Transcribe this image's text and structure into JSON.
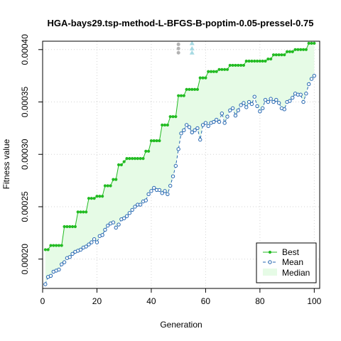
{
  "chart_data": {
    "type": "line",
    "title": "HGA-bays29.tsp-method-L-BFGS-B-poptim-0.05-pressel-0.75",
    "xlabel": "Generation",
    "ylabel": "Fitness value",
    "xlim": [
      0,
      102
    ],
    "ylim": [
      0.000172,
      0.000408
    ],
    "x_ticks": [
      0,
      20,
      40,
      60,
      80,
      100
    ],
    "x_tick_labels": [
      "0",
      "20",
      "40",
      "60",
      "80",
      "100"
    ],
    "y_ticks": [
      0.0002,
      0.00025,
      0.0003,
      0.00035,
      0.0004
    ],
    "y_tick_labels": [
      "0.00020",
      "0.00025",
      "0.00030",
      "0.00035",
      "0.00040"
    ],
    "grid": true,
    "legend_position": "bottom-right",
    "x": [
      1,
      2,
      3,
      4,
      5,
      6,
      7,
      8,
      9,
      10,
      11,
      12,
      13,
      14,
      15,
      16,
      17,
      18,
      19,
      20,
      21,
      22,
      23,
      24,
      25,
      26,
      27,
      28,
      29,
      30,
      31,
      32,
      33,
      34,
      35,
      36,
      37,
      38,
      39,
      40,
      41,
      42,
      43,
      44,
      45,
      46,
      47,
      48,
      49,
      50,
      51,
      52,
      53,
      54,
      55,
      56,
      57,
      58,
      59,
      60,
      61,
      62,
      63,
      64,
      65,
      66,
      67,
      68,
      69,
      70,
      71,
      72,
      73,
      74,
      75,
      76,
      77,
      78,
      79,
      80,
      81,
      82,
      83,
      84,
      85,
      86,
      87,
      88,
      89,
      90,
      91,
      92,
      93,
      94,
      95,
      96,
      97,
      98,
      99,
      100
    ],
    "series": [
      {
        "name": "Best",
        "color": "#22bb22",
        "style": "solid-dots",
        "values": [
          0.000209,
          0.000209,
          0.000213,
          0.000213,
          0.000213,
          0.000213,
          0.000213,
          0.000231,
          0.000231,
          0.000231,
          0.000231,
          0.000231,
          0.000245,
          0.000245,
          0.000245,
          0.000245,
          0.000258,
          0.000258,
          0.000258,
          0.00026,
          0.00026,
          0.00026,
          0.00027,
          0.00027,
          0.00027,
          0.000276,
          0.000276,
          0.00029,
          0.00029,
          0.000293,
          0.000296,
          0.000296,
          0.000296,
          0.000296,
          0.000296,
          0.000296,
          0.000296,
          0.000303,
          0.000303,
          0.000313,
          0.000313,
          0.000313,
          0.000313,
          0.000328,
          0.000328,
          0.000328,
          0.000336,
          0.000336,
          0.000336,
          0.000356,
          0.000356,
          0.000356,
          0.000362,
          0.000362,
          0.000362,
          0.000362,
          0.000362,
          0.000373,
          0.000373,
          0.000373,
          0.000379,
          0.000379,
          0.000379,
          0.000379,
          0.000381,
          0.000381,
          0.000381,
          0.000381,
          0.000385,
          0.000385,
          0.000385,
          0.000385,
          0.000385,
          0.000385,
          0.000389,
          0.000389,
          0.000389,
          0.000389,
          0.000389,
          0.000389,
          0.000389,
          0.000389,
          0.000391,
          0.000391,
          0.000395,
          0.000395,
          0.000395,
          0.000395,
          0.000395,
          0.000398,
          0.000398,
          0.000398,
          0.0004,
          0.0004,
          0.0004,
          0.0004,
          0.0004,
          0.000406,
          0.000406,
          0.000406
        ]
      },
      {
        "name": "Mean",
        "color": "#2466b0",
        "style": "dashed-open-circles",
        "values": [
          0.000176,
          0.000183,
          0.000184,
          0.000188,
          0.000189,
          0.00019,
          0.000195,
          0.000197,
          0.000201,
          0.000202,
          0.000205,
          0.000207,
          0.000208,
          0.000209,
          0.000211,
          0.000212,
          0.000214,
          0.000216,
          0.000219,
          0.000216,
          0.000222,
          0.000223,
          0.000228,
          0.000232,
          0.000234,
          0.000235,
          0.00023,
          0.000233,
          0.000238,
          0.000239,
          0.000241,
          0.000244,
          0.000247,
          0.00025,
          0.000252,
          0.000252,
          0.000255,
          0.000256,
          0.000262,
          0.000265,
          0.000268,
          0.000266,
          0.000266,
          0.000263,
          0.000265,
          0.000262,
          0.00027,
          0.000279,
          0.000289,
          0.000305,
          0.00032,
          0.000323,
          0.000328,
          0.000326,
          0.000321,
          0.000323,
          0.000325,
          0.000314,
          0.000328,
          0.00033,
          0.000327,
          0.00033,
          0.000331,
          0.000333,
          0.000331,
          0.000339,
          0.00033,
          0.000336,
          0.000342,
          0.000344,
          0.000337,
          0.000342,
          0.000347,
          0.000349,
          0.000345,
          0.00035,
          0.000348,
          0.000355,
          0.000346,
          0.000341,
          0.000344,
          0.000352,
          0.00035,
          0.000353,
          0.00035,
          0.000352,
          0.000349,
          0.000344,
          0.000343,
          0.00035,
          0.000351,
          0.000354,
          0.000358,
          0.000357,
          0.000357,
          0.00035,
          0.000358,
          0.000367,
          0.000372,
          0.000375
        ]
      },
      {
        "name": "Median",
        "color": "#e6fbe6",
        "style": "shaded-band"
      }
    ],
    "annotations": [
      {
        "x": 50,
        "markers": [
          0.000405,
          0.000401,
          0.000397
        ],
        "color": "#b2b2b2",
        "shape": "circle"
      },
      {
        "x": 55,
        "markers": [
          0.000406,
          0.000401,
          0.000397
        ],
        "color": "#a7dae3",
        "shape": "triangle"
      }
    ]
  }
}
